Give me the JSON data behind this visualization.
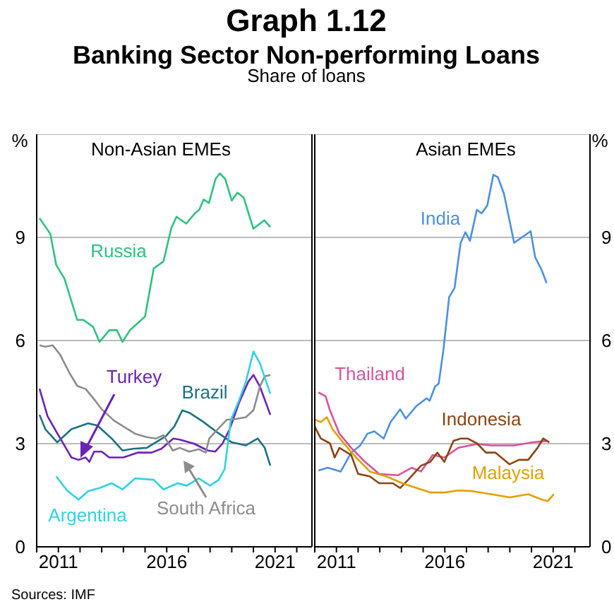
{
  "chart_data": [
    {
      "type": "line",
      "title": "Graph 1.12",
      "subtitle": "Banking Sector Non-performing Loans",
      "ylabel": "%",
      "annotations": [
        "Share of loans",
        "Non-Asian EMEs",
        "Sources: IMF"
      ],
      "grid": "y",
      "xlim": [
        2010,
        2022.7
      ],
      "xticks": [
        {
          "value": 2010,
          "label": null
        },
        2011,
        {
          "value": 2012,
          "label": null
        },
        {
          "value": 2013,
          "label": null
        },
        {
          "value": 2014,
          "label": null
        },
        {
          "value": 2015,
          "label": null
        },
        2016,
        {
          "value": 2017,
          "label": null
        },
        {
          "value": 2018,
          "label": null
        },
        {
          "value": 2019,
          "label": null
        },
        {
          "value": 2020,
          "label": null
        },
        2021,
        {
          "value": 2022,
          "label": null
        }
      ],
      "ylim": [
        0,
        12
      ],
      "yticks": [
        0,
        3,
        6,
        9
      ],
      "series": [
        {
          "name": "Russia",
          "color": "#2ec27e",
          "x": [
            2010.13,
            2010.63,
            2010.9,
            2011.28,
            2011.87,
            2012.15,
            2012.6,
            2012.9,
            2013.35,
            2013.7,
            2013.96,
            2014.3,
            2015,
            2015.4,
            2015.85,
            2016.2,
            2016.45,
            2016.9,
            2017.3,
            2017.5,
            2017.7,
            2017.95,
            2018.25,
            2018.45,
            2018.7,
            2019,
            2019.26,
            2019.55,
            2020,
            2020.5,
            2020.78
          ],
          "values": [
            9.56,
            9.1,
            8.2,
            7.8,
            6.6,
            6.6,
            6.4,
            5.96,
            6.3,
            6.3,
            5.96,
            6.3,
            6.7,
            8.1,
            8.3,
            9.25,
            9.6,
            9.4,
            9.7,
            9.8,
            10.1,
            10,
            10.7,
            10.86,
            10.7,
            10.07,
            10.3,
            10.16,
            9.25,
            9.5,
            9.3
          ]
        },
        {
          "name": "Turkey",
          "color": "#6a22b8",
          "x": [
            2010.13,
            2010.5,
            2010.95,
            2011.6,
            2011.93,
            2012.26,
            2012.43,
            2012.65,
            2013,
            2013.35,
            2014,
            2014.65,
            2015.3,
            2015.75,
            2016.3,
            2016.6,
            2017.26,
            2017.9,
            2018.24,
            2018.57,
            2018.9,
            2019.33,
            2019.76,
            2020,
            2020.3,
            2020.78
          ],
          "values": [
            4.6,
            3.8,
            3.3,
            2.6,
            2.53,
            2.6,
            2.47,
            2.77,
            2.77,
            2.6,
            2.6,
            2.74,
            2.74,
            2.85,
            3.15,
            3.12,
            3,
            2.8,
            2.77,
            3,
            3.42,
            4.18,
            4.8,
            5,
            4.66,
            3.84
          ]
        },
        {
          "name": "Brazil",
          "color": "#1b7185",
          "x": [
            2010.13,
            2010.4,
            2010.95,
            2011.6,
            2012.37,
            2012.8,
            2013.46,
            2013.96,
            2014.43,
            2015.08,
            2015.96,
            2016.35,
            2016.72,
            2017.04,
            2017.7,
            2018.35,
            2019,
            2019.65,
            2020.2,
            2020.52,
            2020.78
          ],
          "values": [
            3.84,
            3.42,
            3.04,
            3.42,
            3.59,
            3.53,
            3.15,
            2.8,
            2.85,
            2.88,
            3.22,
            3.5,
            3.97,
            3.9,
            3.63,
            3.32,
            3.04,
            2.95,
            3.15,
            2.88,
            2.36
          ]
        },
        {
          "name": "South Africa",
          "color": "#8c8c8c",
          "x": [
            2010.13,
            2010.4,
            2010.74,
            2011.07,
            2011.5,
            2011.87,
            2012.26,
            2012.7,
            2013,
            2013.57,
            2014,
            2014.54,
            2015.08,
            2015.52,
            2015.85,
            2016.28,
            2016.6,
            2017.04,
            2017.48,
            2017.8,
            2017.96,
            2018.35,
            2018.78,
            2019.2,
            2019.65,
            2020,
            2020.3,
            2020.52,
            2020.78
          ],
          "values": [
            5.86,
            5.82,
            5.86,
            5.6,
            5.07,
            4.68,
            4.59,
            4.25,
            4,
            3.67,
            3.5,
            3.29,
            3.19,
            3.15,
            3.25,
            2.8,
            2.88,
            2.77,
            2.84,
            2.74,
            3.15,
            3.42,
            3.7,
            3.72,
            3.77,
            3.97,
            4.66,
            4.96,
            5
          ]
        },
        {
          "name": "Argentina",
          "color": "#2fd3e0",
          "x": [
            2010.9,
            2011.4,
            2011.93,
            2012.37,
            2012.9,
            2013.46,
            2013.96,
            2014.54,
            2015.4,
            2015.85,
            2016.5,
            2016.93,
            2017.48,
            2018,
            2018.4,
            2018.67,
            2018.96,
            2019.33,
            2019.65,
            2020,
            2020.3,
            2020.63,
            2020.78
          ],
          "values": [
            2.05,
            1.64,
            1.37,
            1.62,
            1.71,
            1.85,
            1.67,
            1.99,
            1.95,
            1.67,
            1.85,
            1.78,
            1.99,
            1.78,
            1.95,
            2.26,
            3.7,
            4.25,
            4.8,
            5.68,
            5.34,
            4.73,
            4.45
          ]
        }
      ]
    },
    {
      "type": "line",
      "ylabel": "%",
      "annotations": [
        "Asian EMEs"
      ],
      "grid": "y",
      "xlim": [
        2010,
        2022.7
      ],
      "xticks": [
        {
          "value": 2010,
          "label": null
        },
        2011,
        {
          "value": 2012,
          "label": null
        },
        {
          "value": 2013,
          "label": null
        },
        {
          "value": 2014,
          "label": null
        },
        {
          "value": 2015,
          "label": null
        },
        2016,
        {
          "value": 2017,
          "label": null
        },
        {
          "value": 2018,
          "label": null
        },
        {
          "value": 2019,
          "label": null
        },
        {
          "value": 2020,
          "label": null
        },
        2021,
        {
          "value": 2022,
          "label": null
        }
      ],
      "ylim": [
        0,
        12
      ],
      "yticks": [
        0,
        3,
        6,
        9
      ],
      "series": [
        {
          "name": "India",
          "color": "#4a90e2",
          "x": [
            2010.17,
            2010.6,
            2011.2,
            2011.68,
            2012.1,
            2012.43,
            2012.75,
            2013.18,
            2013.5,
            2013.94,
            2014.2,
            2014.7,
            2015.16,
            2015.3,
            2015.55,
            2015.72,
            2015.94,
            2016.2,
            2016.45,
            2016.73,
            2016.95,
            2017.16,
            2017.48,
            2017.7,
            2017.96,
            2018.24,
            2018.45,
            2018.73,
            2019.2,
            2019.96,
            2020.17,
            2020.45,
            2020.7
          ],
          "values": [
            2.22,
            2.3,
            2.19,
            2.74,
            2.95,
            3.29,
            3.36,
            3.15,
            3.63,
            4,
            3.73,
            4.1,
            4.32,
            4.25,
            4.66,
            4.75,
            5.75,
            7.26,
            7.53,
            8.84,
            9.15,
            8.9,
            9.8,
            9.7,
            9.93,
            10.82,
            10.75,
            10.27,
            8.84,
            9.18,
            8.42,
            8.08,
            7.67
          ]
        },
        {
          "name": "Thailand",
          "color": "#d6539f",
          "x": [
            2010.17,
            2010.5,
            2010.7,
            2011.14,
            2011.68,
            2012.32,
            2012.97,
            2013.83,
            2014.47,
            2014.9,
            2015.44,
            2015.98,
            2016.62,
            2017.48,
            2018.13,
            2019.2,
            2020.06,
            2020.7
          ],
          "values": [
            4.49,
            4.38,
            3.97,
            3.29,
            2.88,
            2.47,
            2.12,
            2.08,
            2.3,
            2.19,
            2.67,
            2.6,
            2.88,
            2.99,
            2.95,
            2.95,
            3.04,
            3.08
          ]
        },
        {
          "name": "Indonesia",
          "color": "#8b4513",
          "x": [
            2010,
            2010.28,
            2010.7,
            2010.92,
            2011.14,
            2011.68,
            2012,
            2012.54,
            2012.97,
            2013.6,
            2013.94,
            2014.37,
            2014.9,
            2015.33,
            2015.66,
            2015.98,
            2016.4,
            2016.73,
            2017.05,
            2017.48,
            2017.9,
            2018.34,
            2018.99,
            2019.42,
            2019.85,
            2020.28,
            2020.54,
            2020.82
          ],
          "values": [
            3.49,
            3.15,
            3.01,
            2.6,
            2.88,
            2.67,
            2.12,
            2.05,
            1.85,
            1.85,
            1.71,
            1.99,
            2.36,
            2.47,
            2.74,
            2.47,
            3.08,
            3.15,
            3.15,
            3.01,
            2.74,
            2.74,
            2.4,
            2.53,
            2.53,
            2.88,
            3.15,
            3.04
          ]
        },
        {
          "name": "Malaysia",
          "color": "#e0a000",
          "x": [
            2010,
            2010.28,
            2010.56,
            2010.82,
            2011.25,
            2011.9,
            2012.54,
            2013.3,
            2014.04,
            2014.7,
            2015.33,
            2015.98,
            2016.62,
            2017.27,
            2018.13,
            2019,
            2019.85,
            2020.5,
            2020.75,
            2021.03
          ],
          "values": [
            3.7,
            3.63,
            3.77,
            3.42,
            3.08,
            2.6,
            2.19,
            2.05,
            1.85,
            1.71,
            1.58,
            1.58,
            1.64,
            1.62,
            1.53,
            1.44,
            1.53,
            1.37,
            1.33,
            1.53
          ]
        }
      ]
    }
  ]
}
